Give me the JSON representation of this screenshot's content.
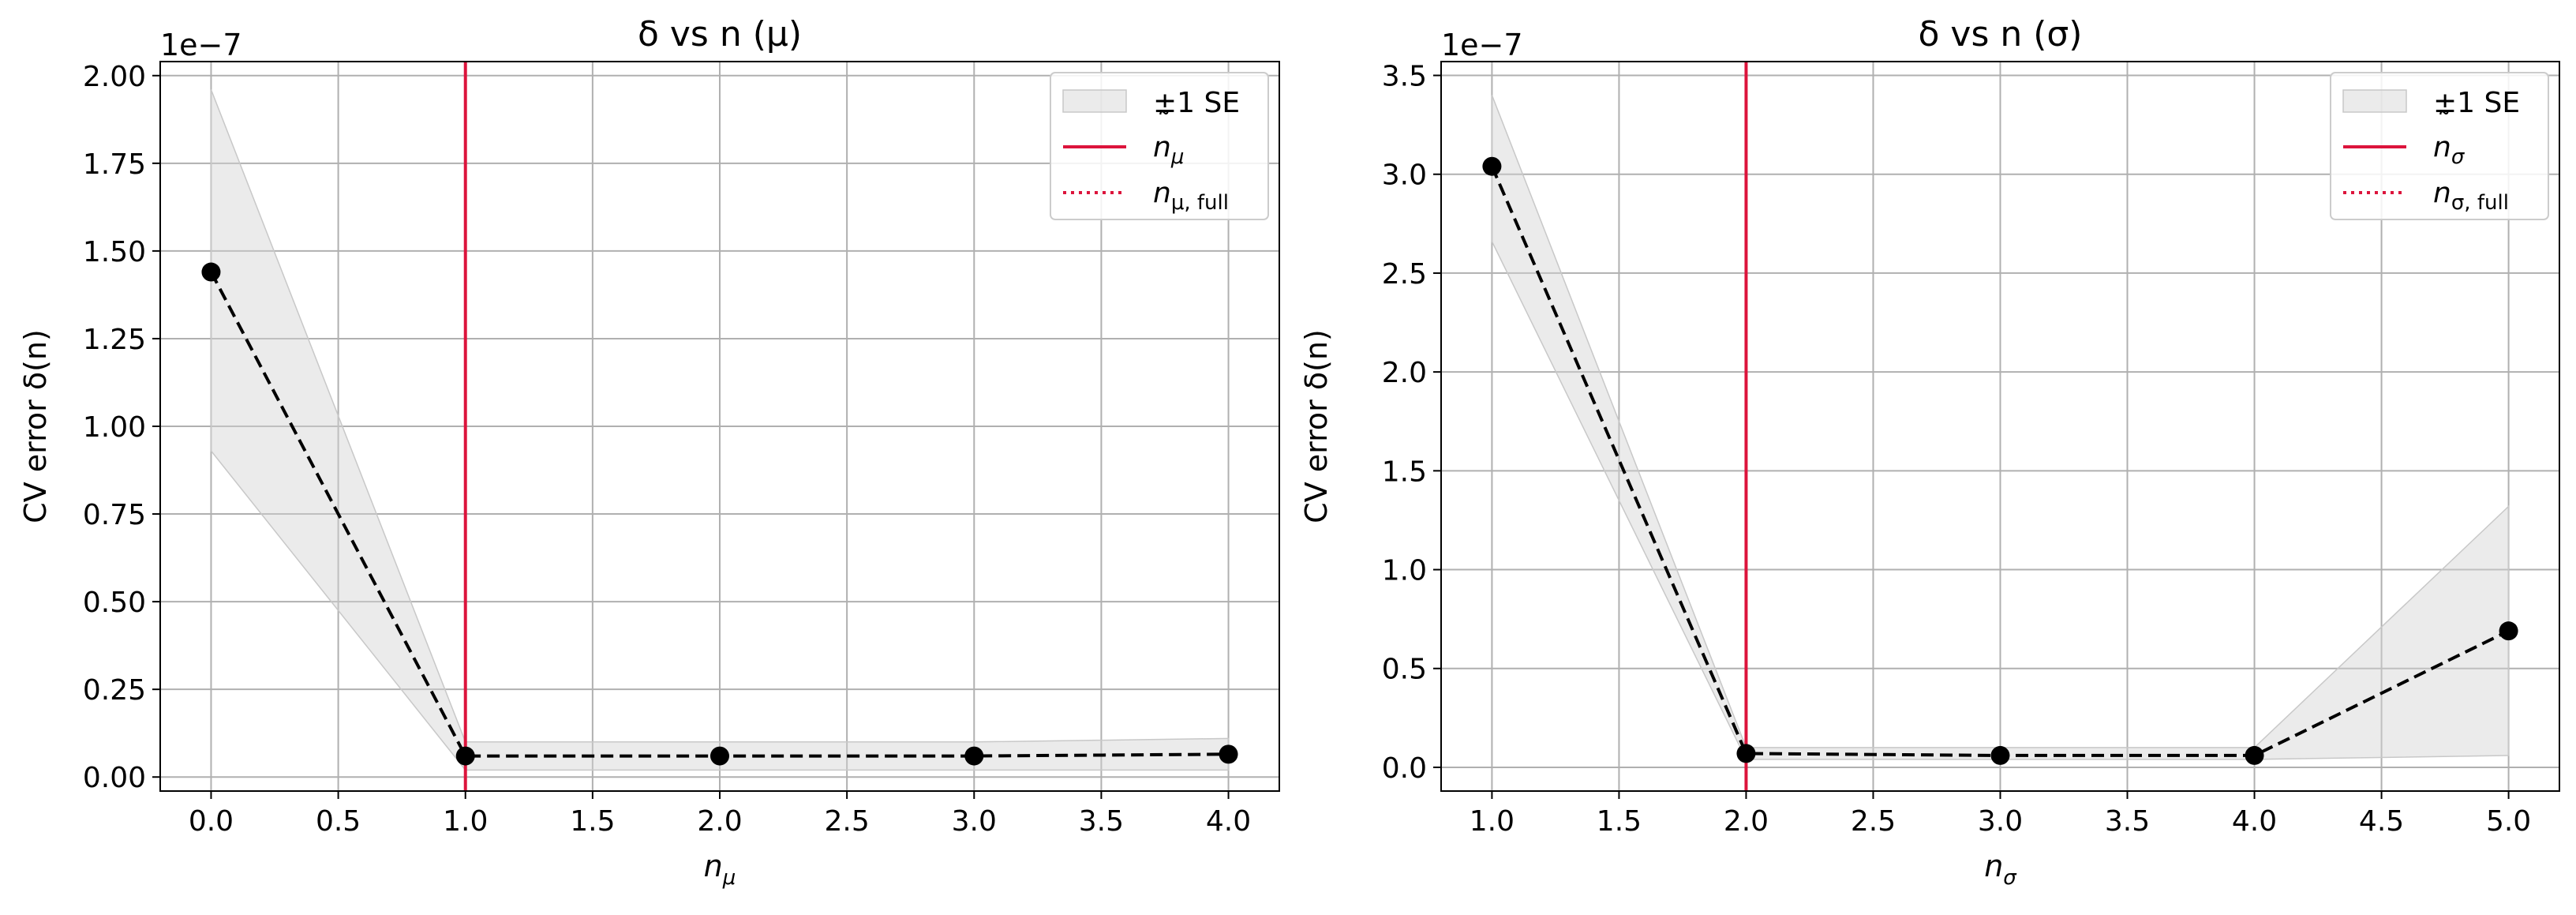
{
  "colors": {
    "accent": "#dc143c",
    "band": "#d3d3d3",
    "grid": "#b0b0b0",
    "line": "#000000"
  },
  "chart_data": [
    {
      "type": "line",
      "title": "δ vs n (μ)",
      "xlabel": "n_μ",
      "ylabel": "CV error δ(n)",
      "y_multiplier": "1e−7",
      "xlim": [
        -0.2,
        4.2
      ],
      "ylim": [
        -0.04,
        2.04
      ],
      "xticks": [
        "0.0",
        "0.5",
        "1.0",
        "1.5",
        "2.0",
        "2.5",
        "3.0",
        "3.5",
        "4.0"
      ],
      "yticks": [
        "0.00",
        "0.25",
        "0.50",
        "0.75",
        "1.00",
        "1.25",
        "1.50",
        "1.75",
        "2.00"
      ],
      "grid": true,
      "legend_position": "top-right",
      "x": [
        0,
        1,
        2,
        3,
        4
      ],
      "y": [
        1.44,
        0.06,
        0.06,
        0.06,
        0.065
      ],
      "band_lower": [
        0.93,
        0.02,
        0.02,
        0.02,
        0.02
      ],
      "band_upper": [
        1.96,
        0.1,
        0.1,
        0.1,
        0.11
      ],
      "vline": 1.0,
      "legend": {
        "band": "±1 SE",
        "tilde_base": "n",
        "tilde_sub": "μ",
        "full_base": "n",
        "full_sub": "μ, full"
      }
    },
    {
      "type": "line",
      "title": "δ vs n (σ)",
      "xlabel": "n_σ",
      "ylabel": "CV error δ(n)",
      "y_multiplier": "1e−7",
      "xlim": [
        0.8,
        5.2
      ],
      "ylim": [
        -0.12,
        3.57
      ],
      "xticks": [
        "1.0",
        "1.5",
        "2.0",
        "2.5",
        "3.0",
        "3.5",
        "4.0",
        "4.5",
        "5.0"
      ],
      "yticks": [
        "0.0",
        "0.5",
        "1.0",
        "1.5",
        "2.0",
        "2.5",
        "3.0",
        "3.5"
      ],
      "grid": true,
      "legend_position": "top-right",
      "x": [
        1,
        2,
        3,
        4,
        5
      ],
      "y": [
        3.04,
        0.07,
        0.06,
        0.06,
        0.69
      ],
      "band_lower": [
        2.66,
        0.04,
        0.04,
        0.04,
        0.06
      ],
      "band_upper": [
        3.4,
        0.1,
        0.1,
        0.1,
        1.32
      ],
      "vline": 2.0,
      "legend": {
        "band": "±1 SE",
        "tilde_base": "n",
        "tilde_sub": "σ",
        "full_base": "n",
        "full_sub": "σ, full"
      }
    }
  ]
}
